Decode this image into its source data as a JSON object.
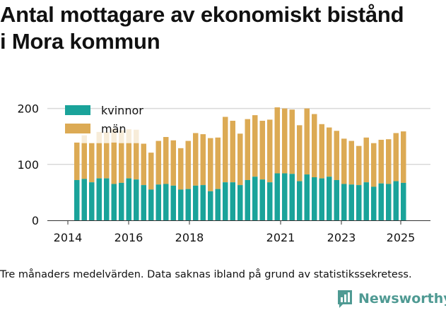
{
  "title_line1": "Antal mottagare av ekonomiskt bistånd",
  "title_line2": "i Mora kommun",
  "caption": "Tre månaders medelvärden. Data saknas ibland på grund av statistikssekretess.",
  "brand": {
    "name": "Newsworthy",
    "logo_icon": "bar-chart-logo-icon"
  },
  "colors": {
    "kvinnor": "#1aa39a",
    "man": "#dcaa54",
    "grid": "#d9d9d9",
    "axis": "#333333",
    "brand": "#4f9a93"
  },
  "chart_data": {
    "type": "bar",
    "stacked": true,
    "title": "Antal mottagare av ekonomiskt bistånd i Mora kommun",
    "xlabel": "",
    "ylabel": "",
    "ylim": [
      0,
      215
    ],
    "yticks": [
      0,
      100,
      200
    ],
    "xticks": [
      "2014",
      "2016",
      "2018",
      "2021",
      "2023",
      "2025"
    ],
    "grid": "horizontal",
    "legend_position": "top-left",
    "series": [
      {
        "name": "kvinnor",
        "values": [
          72,
          74,
          68,
          75,
          75,
          65,
          67,
          75,
          73,
          63,
          55,
          64,
          65,
          62,
          55,
          56,
          62,
          63,
          52,
          56,
          68,
          68,
          63,
          72,
          78,
          73,
          68,
          84,
          84,
          83,
          70,
          82,
          77,
          75,
          78,
          72,
          65,
          64,
          63,
          68,
          60,
          66,
          65,
          70,
          67
        ]
      },
      {
        "name": "män",
        "values": [
          67,
          64,
          70,
          63,
          63,
          74,
          71,
          63,
          65,
          74,
          66,
          78,
          84,
          81,
          74,
          86,
          94,
          91,
          95,
          92,
          117,
          110,
          92,
          109,
          110,
          105,
          112,
          118,
          116,
          115,
          100,
          118,
          113,
          97,
          88,
          88,
          81,
          78,
          70,
          80,
          78,
          78,
          80,
          86,
          92
        ]
      }
    ],
    "faded_series": [
      {
        "name": "män-faded",
        "values": [
          0,
          14,
          0,
          20,
          20,
          25,
          23,
          25,
          24,
          0,
          0,
          0,
          0,
          0,
          0,
          0,
          0,
          0,
          0,
          0,
          0,
          0,
          0,
          0,
          0,
          0,
          0,
          0,
          0,
          0,
          0,
          0,
          0,
          0,
          0,
          0,
          0,
          0,
          0,
          0,
          0,
          0,
          0,
          0,
          0
        ]
      }
    ]
  }
}
